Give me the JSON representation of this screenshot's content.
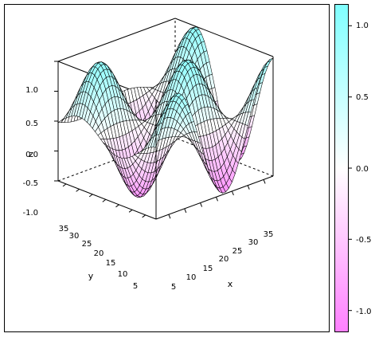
{
  "chart_data": {
    "type": "surface",
    "function": "z = sin(x*pi/15) * cos(y*pi/15)",
    "grid": {
      "x_min": 1,
      "x_max": 38,
      "y_min": 1,
      "y_max": 38,
      "mesh_x": 38,
      "mesh_y": 38
    },
    "zlim": [
      -1.0,
      1.0
    ],
    "axes": {
      "x": {
        "label": "x",
        "ticks": [
          "5",
          "10",
          "15",
          "20",
          "25",
          "30",
          "35"
        ]
      },
      "y": {
        "label": "y",
        "ticks": [
          "5",
          "10",
          "15",
          "20",
          "25",
          "30",
          "35"
        ]
      },
      "z": {
        "label": "z",
        "ticks": [
          "-1.0",
          "-0.5",
          "0.0",
          "0.5",
          "1.0"
        ]
      }
    },
    "colorkey": {
      "range": [
        -1.15,
        1.15
      ],
      "ticks": [
        "1.0",
        "0.5",
        "0.0",
        "-0.5",
        "-1.0"
      ],
      "low_color": "#ff80ff",
      "mid_color": "#ffffff",
      "high_color": "#80ffff"
    },
    "mesh_line_color": "#000000",
    "box_line_color": "#000000"
  }
}
